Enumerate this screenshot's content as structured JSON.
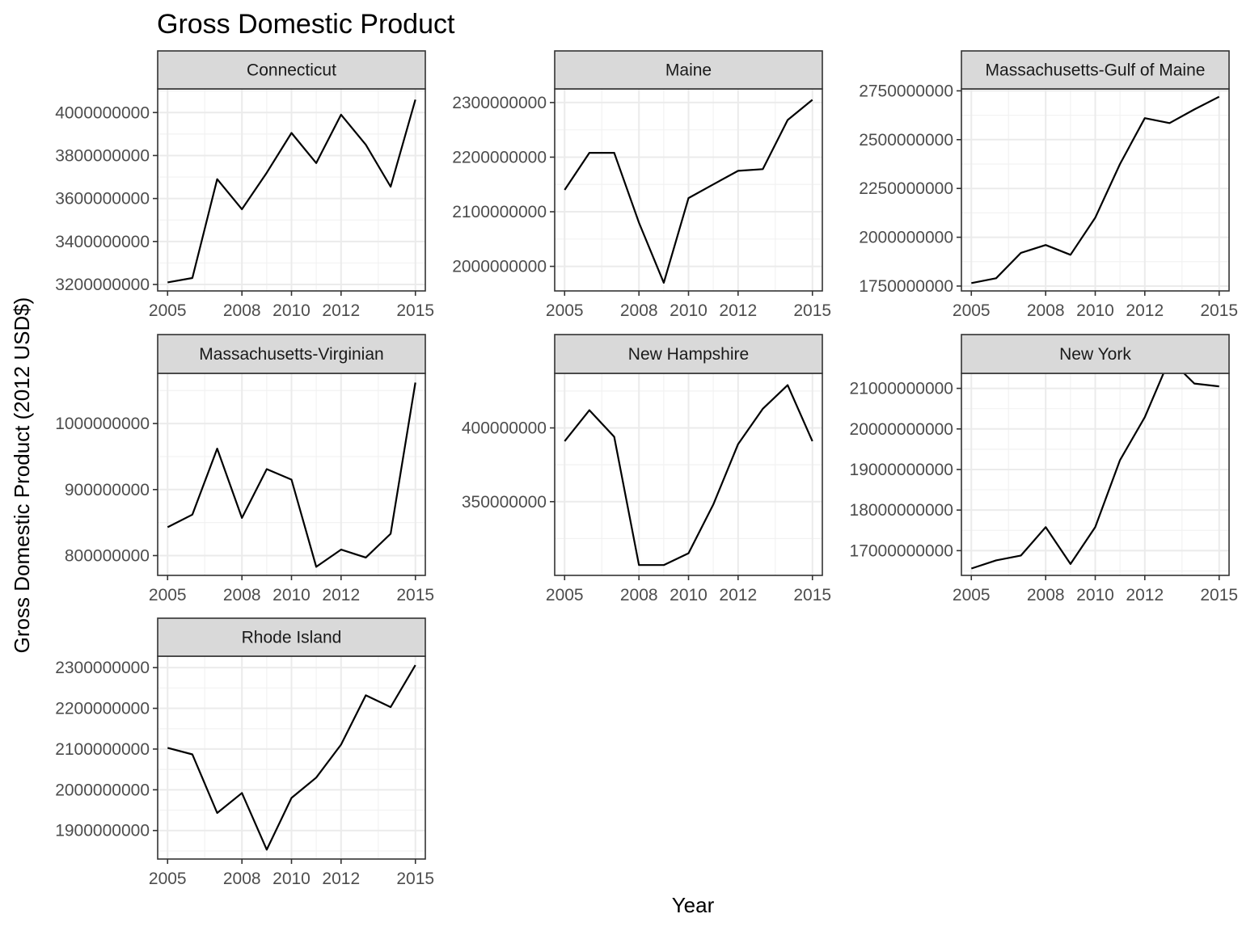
{
  "chart_data": {
    "type": "line",
    "title": "Gross Domestic Product",
    "xlabel": "Year",
    "ylabel": "Gross Domestic Product (2012 USD$)",
    "grid": true,
    "theme": "black-and-white facets",
    "line_color": "#000000",
    "x_ticks": [
      "2005",
      "2008",
      "2010",
      "2012",
      "2015"
    ],
    "x": [
      2005,
      2006,
      2007,
      2008,
      2009,
      2010,
      2011,
      2012,
      2013,
      2014,
      2015
    ],
    "facets": [
      {
        "name": "Connecticut",
        "ylim": [
          3170000000,
          4110000000
        ],
        "y_ticks": [
          "3200000000",
          "3400000000",
          "3600000000",
          "3800000000",
          "4000000000"
        ],
        "values": [
          3210000000,
          3230000000,
          3690000000,
          3550000000,
          3720000000,
          3905000000,
          3765000000,
          3990000000,
          3850000000,
          3655000000,
          4060000000
        ]
      },
      {
        "name": "Maine",
        "ylim": [
          1955000000,
          2325000000
        ],
        "y_ticks": [
          "2000000000",
          "2100000000",
          "2200000000",
          "2300000000"
        ],
        "values": [
          2140000000,
          2208000000,
          2208000000,
          2080000000,
          1970000000,
          2125000000,
          2150000000,
          2175000000,
          2178000000,
          2268000000,
          2305000000
        ]
      },
      {
        "name": "Massachusetts-Gulf of Maine",
        "ylim": [
          1725000000,
          2760000000
        ],
        "y_ticks": [
          "1750000000",
          "2000000000",
          "2250000000",
          "2500000000",
          "2750000000"
        ],
        "values": [
          1765000000,
          1790000000,
          1920000000,
          1960000000,
          1910000000,
          2100000000,
          2375000000,
          2610000000,
          2585000000,
          2655000000,
          2720000000
        ]
      },
      {
        "name": "Massachusetts-Virginian",
        "ylim": [
          770000000,
          1076000000
        ],
        "y_ticks": [
          "800000000",
          "900000000",
          "1000000000"
        ],
        "values": [
          843000000,
          862000000,
          962000000,
          857000000,
          931000000,
          915000000,
          783000000,
          809000000,
          797000000,
          833000000,
          1062000000
        ]
      },
      {
        "name": "New Hampshire",
        "ylim": [
          300000000,
          437000000
        ],
        "y_ticks": [
          "350000000",
          "400000000"
        ],
        "values": [
          391000000,
          412000000,
          394000000,
          307000000,
          307000000,
          315000000,
          348000000,
          389000000,
          413000000,
          429000000,
          391000000
        ]
      },
      {
        "name": "New York",
        "ylim": [
          16390000000,
          21370000000
        ],
        "y_ticks": [
          "17000000000",
          "18000000000",
          "19000000000",
          "20000000000",
          "21000000000"
        ],
        "values": [
          16560000000,
          16760000000,
          16880000000,
          17580000000,
          16670000000,
          17580000000,
          19230000000,
          20290000000,
          21720000000,
          21120000000,
          21050000000
        ]
      },
      {
        "name": "Rhode Island",
        "ylim": [
          1830000000,
          2328000000
        ],
        "y_ticks": [
          "1900000000",
          "2000000000",
          "2100000000",
          "2200000000",
          "2300000000"
        ],
        "values": [
          2103000000,
          2087000000,
          1943000000,
          1992000000,
          1853000000,
          1980000000,
          2030000000,
          2111000000,
          2232000000,
          2203000000,
          2306000000
        ]
      }
    ]
  }
}
